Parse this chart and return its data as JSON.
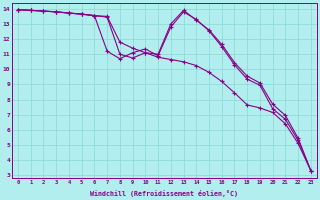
{
  "xlabel": "Windchill (Refroidissement éolien,°C)",
  "background_color": "#b2eeee",
  "grid_color": "#8ad8d8",
  "line_color": "#880088",
  "xlim": [
    -0.5,
    23.5
  ],
  "ylim": [
    2.8,
    14.4
  ],
  "xticks": [
    0,
    1,
    2,
    3,
    4,
    5,
    6,
    7,
    8,
    9,
    10,
    11,
    12,
    13,
    14,
    15,
    16,
    17,
    18,
    19,
    20,
    21,
    22,
    23
  ],
  "yticks": [
    3,
    4,
    5,
    6,
    7,
    8,
    9,
    10,
    11,
    12,
    13,
    14
  ],
  "line1_x": [
    0,
    1,
    2,
    3,
    4,
    5,
    6,
    7,
    8,
    9,
    10,
    11,
    12,
    13,
    14,
    15,
    16,
    17,
    18,
    19,
    20,
    21,
    22,
    23
  ],
  "line1_y": [
    13.95,
    13.9,
    13.85,
    13.8,
    13.72,
    13.65,
    13.55,
    13.5,
    11.8,
    11.4,
    11.1,
    10.8,
    10.65,
    10.5,
    10.25,
    9.8,
    9.2,
    8.45,
    7.65,
    7.45,
    7.15,
    6.4,
    5.1,
    3.3
  ],
  "line2_x": [
    0,
    1,
    2,
    3,
    4,
    5,
    6,
    7,
    8,
    9,
    10,
    11,
    12,
    13,
    14,
    15,
    16,
    17,
    18,
    19,
    20,
    21,
    22,
    23
  ],
  "line2_y": [
    13.95,
    13.9,
    13.85,
    13.8,
    13.72,
    13.65,
    13.55,
    11.2,
    10.7,
    11.1,
    11.35,
    10.9,
    12.8,
    13.8,
    13.3,
    12.55,
    11.5,
    10.3,
    9.35,
    8.95,
    7.4,
    6.7,
    5.3,
    3.3
  ],
  "line3_x": [
    0,
    1,
    2,
    3,
    4,
    5,
    6,
    7,
    8,
    9,
    10,
    11,
    12,
    13,
    14,
    15,
    16,
    17,
    18,
    19,
    20,
    21,
    22,
    23
  ],
  "line3_y": [
    13.95,
    13.9,
    13.85,
    13.8,
    13.72,
    13.65,
    13.55,
    13.45,
    11.0,
    10.75,
    11.1,
    11.0,
    13.0,
    13.9,
    13.25,
    12.6,
    11.65,
    10.45,
    9.55,
    9.1,
    7.7,
    6.95,
    5.45,
    3.3
  ]
}
